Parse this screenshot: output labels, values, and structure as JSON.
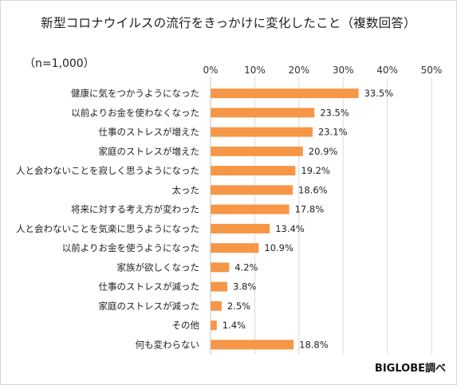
{
  "chart_data": {
    "type": "bar",
    "orientation": "horizontal",
    "title": "新型コロナウイルスの流行をきっかけに変化したこと（複数回答）",
    "sample_note": "（n=1,000）",
    "source": "BIGLOBE調べ",
    "xlim": [
      0,
      50
    ],
    "xticks": [
      "0%",
      "10%",
      "20%",
      "30%",
      "40%",
      "50%"
    ],
    "tick_values": [
      0,
      10,
      20,
      30,
      40,
      50
    ],
    "value_suffix": "%",
    "grid": "vertical",
    "bar_color": "#f79646",
    "categories": [
      "健康に気をつかうようになった",
      "以前よりお金を使わなくなった",
      "仕事のストレスが増えた",
      "家庭のストレスが増えた",
      "人と会わないことを寂しく思うようになった",
      "太った",
      "将来に対する考え方が変わった",
      "人と会わないことを気楽に思うようになった",
      "以前よりお金を使うようになった",
      "家族が欲しくなった",
      "仕事のストレスが減った",
      "家庭のストレスが減った",
      "その他",
      "何も変わらない"
    ],
    "values": [
      33.5,
      23.5,
      23.1,
      20.9,
      19.2,
      18.6,
      17.8,
      13.4,
      10.9,
      4.2,
      3.8,
      2.5,
      1.4,
      18.8
    ]
  }
}
